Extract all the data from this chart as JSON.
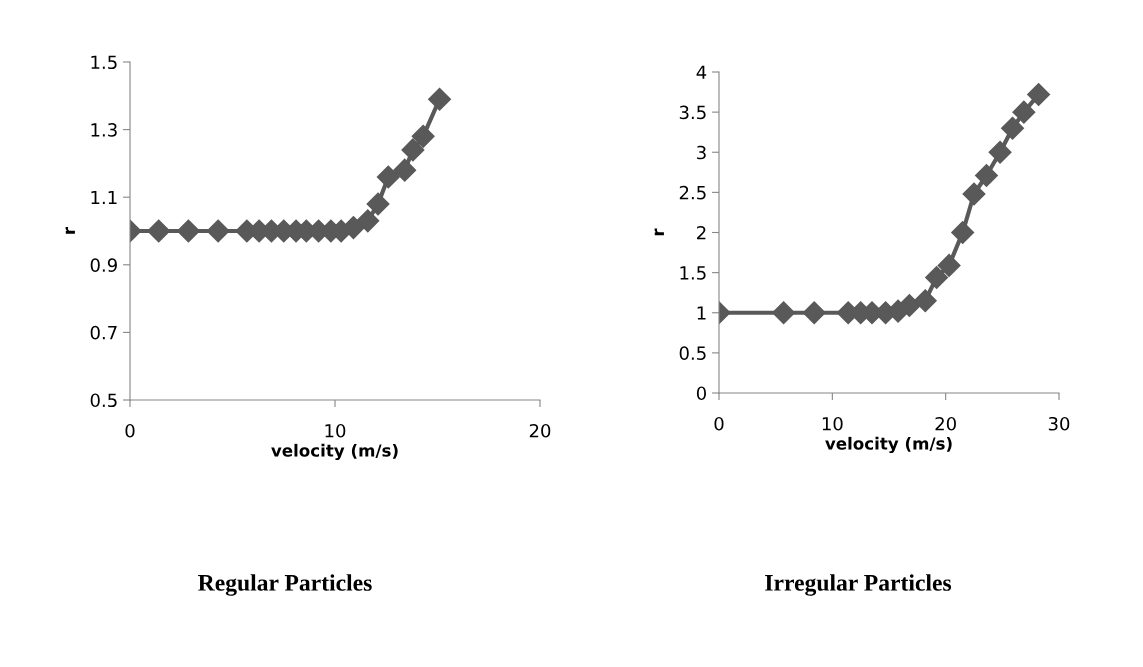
{
  "chart_data": [
    {
      "type": "line",
      "title": "Regular Particles",
      "xlabel": "velocity (m/s)",
      "ylabel": "r",
      "marker": "diamond",
      "grid": false,
      "xlim": [
        0,
        20
      ],
      "xticks": [
        0,
        10,
        20
      ],
      "ylim": [
        0.5,
        1.5
      ],
      "yticks": [
        0.5,
        0.7,
        0.9,
        1.1,
        1.3,
        1.5
      ],
      "series": [
        {
          "color": "#595959",
          "x": [
            0,
            1.4,
            2.85,
            4.3,
            5.7,
            6.3,
            6.9,
            7.5,
            8.1,
            8.6,
            9.2,
            9.8,
            10.3,
            10.9,
            11.6,
            12.1,
            12.6,
            13.4,
            13.8,
            14.3,
            15.1
          ],
          "values": [
            1,
            1,
            1,
            1,
            1,
            1,
            1,
            1,
            1,
            1,
            1,
            1,
            1,
            1.01,
            1.03,
            1.08,
            1.16,
            1.18,
            1.24,
            1.28,
            1.39
          ]
        }
      ]
    },
    {
      "type": "line",
      "title": "Irregular Particles",
      "xlabel": "velocity (m/s)",
      "ylabel": "r",
      "marker": "diamond",
      "grid": false,
      "xlim": [
        0,
        30
      ],
      "xticks": [
        0,
        10,
        20,
        30
      ],
      "ylim": [
        0,
        4
      ],
      "yticks": [
        0,
        0.5,
        1,
        1.5,
        2,
        2.5,
        3,
        3.5,
        4
      ],
      "series": [
        {
          "color": "#595959",
          "x": [
            0,
            5.7,
            8.4,
            11.4,
            12.5,
            13.5,
            14.7,
            15.8,
            16.8,
            18.2,
            19.2,
            20.3,
            21.5,
            22.5,
            23.6,
            24.8,
            25.9,
            26.9,
            28.2
          ],
          "values": [
            1,
            1,
            1,
            1,
            1,
            1,
            1,
            1.02,
            1.09,
            1.15,
            1.44,
            1.59,
            2.0,
            2.48,
            2.71,
            3.0,
            3.3,
            3.5,
            3.72
          ]
        }
      ]
    }
  ]
}
